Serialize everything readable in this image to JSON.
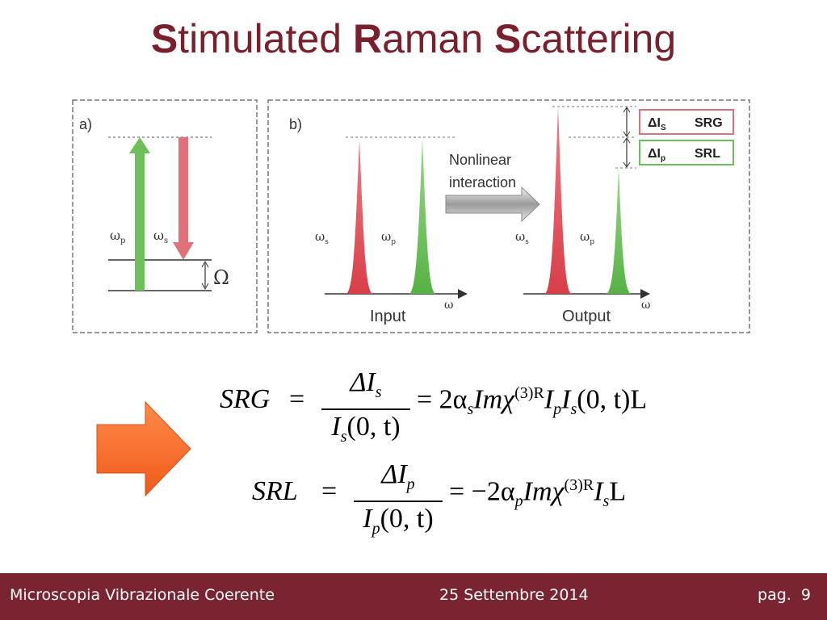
{
  "slide": {
    "title_parts": [
      {
        "text": "S",
        "bold": true
      },
      {
        "text": "timulated ",
        "bold": false
      },
      {
        "text": "R",
        "bold": true
      },
      {
        "text": "aman ",
        "bold": false
      },
      {
        "text": "S",
        "bold": true
      },
      {
        "text": "cattering",
        "bold": false
      }
    ]
  },
  "figure": {
    "panel_a": {
      "label": "a)",
      "omega_p": "ω",
      "omega_p_sub": "p",
      "omega_s": "ω",
      "omega_s_sub": "s",
      "Omega": "Ω"
    },
    "panel_b": {
      "label": "b)",
      "arrow_text_1": "Nonlinear",
      "arrow_text_2": "interaction",
      "input_label": "Input",
      "output_label": "Output",
      "omega": "ω",
      "omega_s": "ω",
      "omega_s_sub": "s",
      "omega_p": "ω",
      "omega_p_sub": "p",
      "srg_box": {
        "delta": "ΔI",
        "sub": "S",
        "name": "SRG"
      },
      "srl_box": {
        "delta": "ΔI",
        "sub": "p",
        "name": "SRL"
      }
    }
  },
  "formulas": {
    "srg": {
      "lhs": "SRG",
      "num": "ΔI",
      "num_sub": "s",
      "den": "I",
      "den_sub": "s",
      "den_arg": "(0, t)",
      "rhs_pre": "= 2α",
      "rhs_sub1": "s",
      "rhs_mid": "Imχ",
      "rhs_sup": "(3)R",
      "rhs_tail1": "I",
      "rhs_sub2": "p",
      "rhs_tail2": "I",
      "rhs_sub3": "s",
      "rhs_end": "(0, t)L"
    },
    "srl": {
      "lhs": "SRL",
      "num": "ΔI",
      "num_sub": "p",
      "den": "I",
      "den_sub": "p",
      "den_arg": "(0, t)",
      "rhs_pre": "= −2α",
      "rhs_sub1": "p",
      "rhs_mid": "Imχ",
      "rhs_sup": "(3)R",
      "rhs_tail1": "I",
      "rhs_sub2": "s",
      "rhs_end": "L"
    }
  },
  "colors": {
    "accent": "#7a1f2b",
    "footer_bg": "#7a2432",
    "stokes_red": "#e0505a",
    "pump_green": "#6cc05a",
    "orange_arrow": "#f26a2a"
  },
  "footer": {
    "left": "Microscopia Vibrazionale Coerente",
    "center": "25 Settembre 2014",
    "right": "pag.  9"
  }
}
